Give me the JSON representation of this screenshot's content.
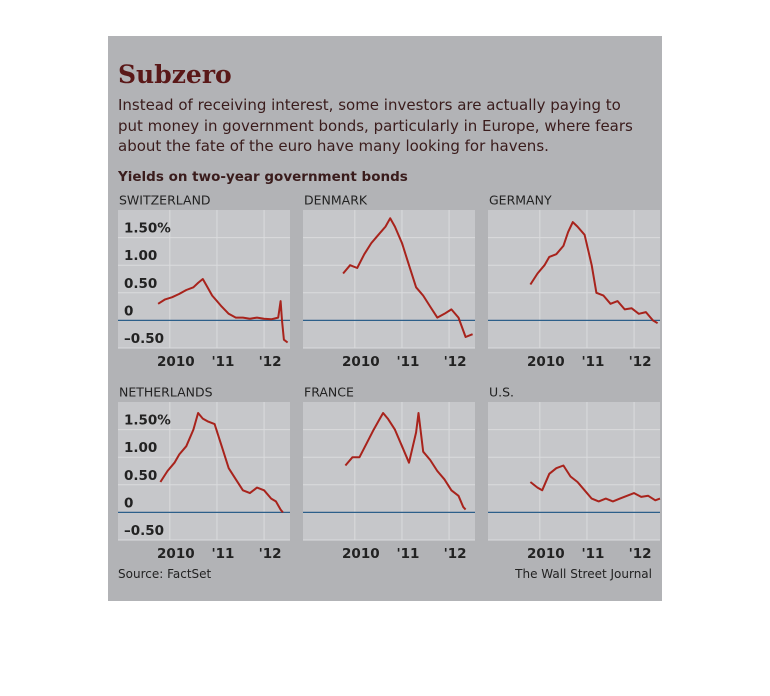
{
  "header": {
    "title": "Subzero",
    "subtitle": "Instead of receiving interest, some investors are actually paying to put money in government bonds, particularly in Europe, where fears about the fate of the euro have many looking for havens.",
    "chart_title": "Yields on two-year government bonds",
    "source": "Source: FactSet",
    "credit": "The Wall Street Journal"
  },
  "chart_data": [
    {
      "type": "line",
      "title": "SWITZERLAND",
      "color": "#a8231c",
      "x": [
        2009.75,
        2009.9,
        2010.05,
        2010.2,
        2010.35,
        2010.5,
        2010.6,
        2010.7,
        2010.8,
        2010.9,
        2011.0,
        2011.1,
        2011.25,
        2011.4,
        2011.55,
        2011.7,
        2011.85,
        2012.0,
        2012.15,
        2012.3,
        2012.35,
        2012.38,
        2012.42,
        2012.5
      ],
      "values": [
        0.3,
        0.38,
        0.42,
        0.48,
        0.55,
        0.6,
        0.68,
        0.75,
        0.6,
        0.45,
        0.35,
        0.25,
        0.12,
        0.05,
        0.05,
        0.03,
        0.05,
        0.03,
        0.02,
        0.05,
        0.35,
        0.0,
        -0.35,
        -0.4
      ],
      "xlim": [
        2008.9,
        2012.55
      ],
      "ylim": [
        -0.5,
        2.0
      ],
      "xticks": [
        {
          "value": 2010,
          "label": "2010"
        },
        {
          "value": 2011,
          "label": "'11"
        },
        {
          "value": 2012,
          "label": "'12"
        }
      ],
      "yticks": [
        {
          "value": -0.5,
          "label": "–0.50"
        },
        0,
        {
          "value": 0.5,
          "label": "0.50"
        },
        {
          "value": 1,
          "label": "1.00"
        },
        {
          "value": 1.5,
          "label": "1.50%"
        }
      ]
    },
    {
      "type": "line",
      "title": "DENMARK",
      "color": "#a8231c",
      "x": [
        2009.75,
        2009.9,
        2010.05,
        2010.2,
        2010.35,
        2010.5,
        2010.65,
        2010.75,
        2010.85,
        2011.0,
        2011.15,
        2011.3,
        2011.45,
        2011.6,
        2011.75,
        2011.9,
        2012.05,
        2012.2,
        2012.35,
        2012.5
      ],
      "values": [
        0.85,
        1.0,
        0.95,
        1.2,
        1.4,
        1.55,
        1.7,
        1.85,
        1.7,
        1.4,
        1.0,
        0.6,
        0.45,
        0.25,
        0.05,
        0.12,
        0.2,
        0.05,
        -0.3,
        -0.25
      ],
      "xlim": [
        2008.9,
        2012.55
      ],
      "ylim": [
        -0.5,
        2.0
      ],
      "xticks": [
        {
          "value": 2010,
          "label": "2010"
        },
        {
          "value": 2011,
          "label": "'11"
        },
        {
          "value": 2012,
          "label": "'12"
        }
      ],
      "yticks": [
        -0.5,
        0,
        0.5,
        1,
        1.5
      ]
    },
    {
      "type": "line",
      "title": "GERMANY",
      "color": "#a8231c",
      "x": [
        2009.8,
        2009.95,
        2010.1,
        2010.2,
        2010.35,
        2010.5,
        2010.6,
        2010.7,
        2010.8,
        2010.95,
        2011.1,
        2011.2,
        2011.35,
        2011.5,
        2011.65,
        2011.8,
        2011.95,
        2012.1,
        2012.25,
        2012.4,
        2012.5
      ],
      "values": [
        0.65,
        0.85,
        1.0,
        1.15,
        1.2,
        1.35,
        1.6,
        1.78,
        1.7,
        1.55,
        1.0,
        0.5,
        0.45,
        0.3,
        0.35,
        0.2,
        0.22,
        0.12,
        0.15,
        0.0,
        -0.05
      ],
      "xlim": [
        2008.9,
        2012.55
      ],
      "ylim": [
        -0.5,
        2.0
      ],
      "xticks": [
        {
          "value": 2010,
          "label": "2010"
        },
        {
          "value": 2011,
          "label": "'11"
        },
        {
          "value": 2012,
          "label": "'12"
        }
      ],
      "yticks": [
        -0.5,
        0,
        0.5,
        1,
        1.5
      ]
    },
    {
      "type": "line",
      "title": "NETHERLANDS",
      "color": "#a8231c",
      "x": [
        2009.8,
        2009.95,
        2010.1,
        2010.2,
        2010.35,
        2010.5,
        2010.6,
        2010.7,
        2010.8,
        2010.95,
        2011.1,
        2011.25,
        2011.4,
        2011.55,
        2011.7,
        2011.85,
        2012.0,
        2012.15,
        2012.25,
        2012.35,
        2012.4
      ],
      "values": [
        0.55,
        0.75,
        0.9,
        1.05,
        1.2,
        1.5,
        1.8,
        1.7,
        1.65,
        1.6,
        1.2,
        0.8,
        0.6,
        0.4,
        0.35,
        0.45,
        0.4,
        0.25,
        0.2,
        0.05,
        0.0
      ],
      "xlim": [
        2008.9,
        2012.55
      ],
      "ylim": [
        -0.5,
        2.0
      ],
      "xticks": [
        {
          "value": 2010,
          "label": "2010"
        },
        {
          "value": 2011,
          "label": "'11"
        },
        {
          "value": 2012,
          "label": "'12"
        }
      ],
      "yticks": [
        {
          "value": -0.5,
          "label": "–0.50"
        },
        0,
        {
          "value": 0.5,
          "label": "0.50"
        },
        {
          "value": 1,
          "label": "1.00"
        },
        {
          "value": 1.5,
          "label": "1.50%"
        }
      ]
    },
    {
      "type": "line",
      "title": "FRANCE",
      "color": "#a8231c",
      "x": [
        2009.8,
        2009.95,
        2010.1,
        2010.25,
        2010.4,
        2010.5,
        2010.6,
        2010.7,
        2010.85,
        2011.0,
        2011.15,
        2011.3,
        2011.35,
        2011.45,
        2011.6,
        2011.75,
        2011.9,
        2012.05,
        2012.2,
        2012.3,
        2012.35
      ],
      "values": [
        0.85,
        1.0,
        1.0,
        1.25,
        1.5,
        1.65,
        1.8,
        1.7,
        1.5,
        1.2,
        0.9,
        1.45,
        1.8,
        1.1,
        0.95,
        0.75,
        0.6,
        0.4,
        0.3,
        0.1,
        0.05
      ],
      "xlim": [
        2008.9,
        2012.55
      ],
      "ylim": [
        -0.5,
        2.0
      ],
      "xticks": [
        {
          "value": 2010,
          "label": "2010"
        },
        {
          "value": 2011,
          "label": "'11"
        },
        {
          "value": 2012,
          "label": "'12"
        }
      ],
      "yticks": [
        -0.5,
        0,
        0.5,
        1,
        1.5
      ]
    },
    {
      "type": "line",
      "title": "U.S.",
      "color": "#a8231c",
      "x": [
        2009.8,
        2009.95,
        2010.05,
        2010.2,
        2010.35,
        2010.5,
        2010.65,
        2010.8,
        2010.95,
        2011.1,
        2011.25,
        2011.4,
        2011.55,
        2011.7,
        2011.85,
        2012.0,
        2012.15,
        2012.3,
        2012.45,
        2012.55
      ],
      "values": [
        0.55,
        0.45,
        0.4,
        0.7,
        0.8,
        0.85,
        0.65,
        0.55,
        0.4,
        0.25,
        0.2,
        0.25,
        0.2,
        0.25,
        0.3,
        0.35,
        0.28,
        0.3,
        0.22,
        0.25
      ],
      "xlim": [
        2008.9,
        2012.55
      ],
      "ylim": [
        -0.5,
        2.0
      ],
      "xticks": [
        {
          "value": 2010,
          "label": "2010"
        },
        {
          "value": 2011,
          "label": "'11"
        },
        {
          "value": 2012,
          "label": "'12"
        }
      ],
      "yticks": [
        -0.5,
        0,
        0.5,
        1,
        1.5
      ]
    }
  ]
}
